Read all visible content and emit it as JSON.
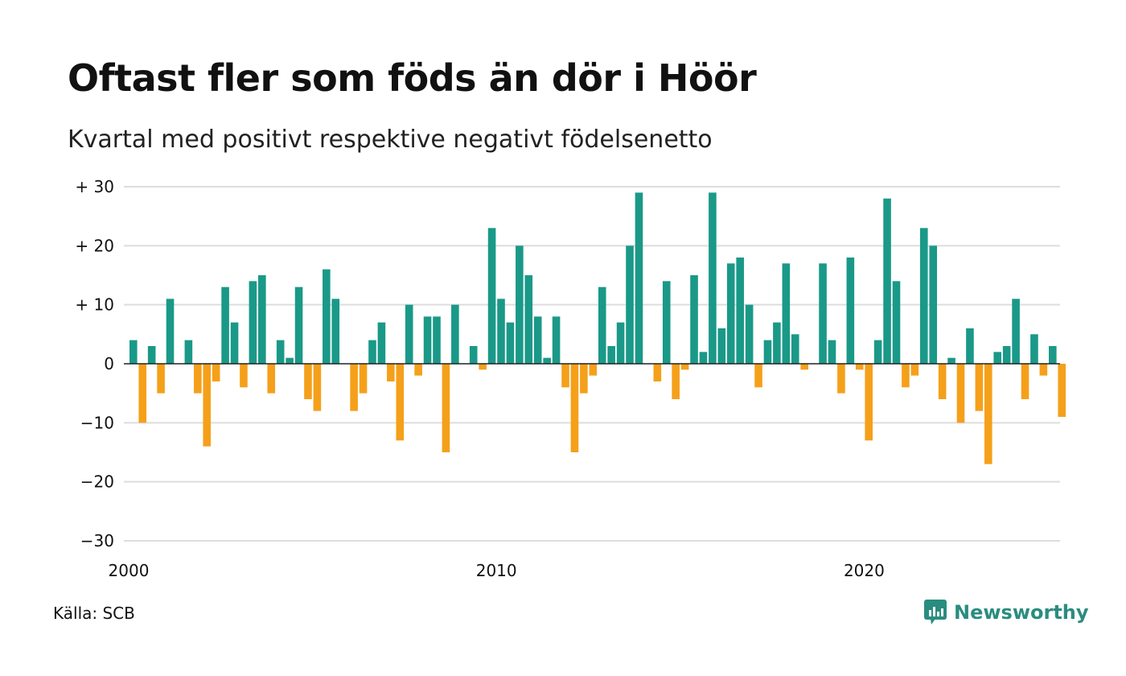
{
  "title": "Oftast fler som föds än dör i Höör",
  "subtitle": "Kvartal med positivt respektive negativt födelsenetto",
  "source": "Källa: SCB",
  "brand": "Newsworthy",
  "colors": {
    "positive": "#1a9988",
    "negative": "#f5a01a",
    "grid": "#dddddd",
    "zero": "#222222",
    "brand": "#2a8c80"
  },
  "chart_data": {
    "type": "bar",
    "start_year": 2000,
    "values": [
      4,
      -10,
      3,
      -5,
      11,
      0,
      4,
      -5,
      -14,
      -3,
      13,
      7,
      -4,
      14,
      15,
      -5,
      4,
      1,
      13,
      -6,
      -8,
      16,
      11,
      0,
      -8,
      -5,
      4,
      7,
      -3,
      -13,
      10,
      -2,
      8,
      8,
      -15,
      10,
      0,
      3,
      -1,
      23,
      11,
      7,
      20,
      15,
      8,
      1,
      8,
      -4,
      -15,
      -5,
      -2,
      13,
      3,
      7,
      20,
      29,
      0,
      -3,
      14,
      -6,
      -1,
      15,
      2,
      29,
      6,
      17,
      18,
      10,
      -4,
      4,
      7,
      17,
      5,
      -1,
      0,
      17,
      4,
      -5,
      18,
      -1,
      -13,
      4,
      28,
      14,
      -4,
      -2,
      23,
      20,
      -6,
      1,
      -10,
      6,
      -8,
      -17,
      2,
      3,
      11,
      -6,
      5,
      -2,
      3,
      -9
    ],
    "yticks": [
      30,
      20,
      10,
      0,
      -10,
      -20,
      -30
    ],
    "ytick_labels": [
      "+ 30",
      "+ 20",
      "+ 10",
      "0",
      "−10",
      "−20",
      "−30"
    ],
    "xticks": [
      {
        "label": "2000",
        "year": 2000
      },
      {
        "label": "2010",
        "year": 2010
      },
      {
        "label": "2020",
        "year": 2020
      }
    ],
    "ylim": [
      -30,
      30
    ],
    "xlabel": "",
    "ylabel": ""
  }
}
